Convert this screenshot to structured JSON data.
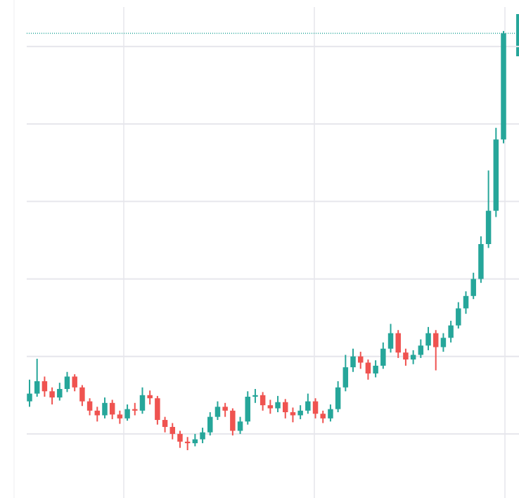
{
  "chart_data": {
    "type": "candlestick",
    "categories": [
      null,
      null,
      null,
      null,
      null,
      null,
      null,
      null,
      null,
      null,
      null,
      null,
      null,
      null,
      null,
      null,
      null,
      null,
      null,
      null,
      null,
      null,
      null,
      null,
      null,
      null,
      null,
      null,
      null,
      null,
      null,
      null,
      null,
      null,
      null,
      null,
      null,
      null,
      null,
      null,
      null,
      null,
      null,
      null,
      null,
      null,
      null,
      null,
      null,
      null,
      null,
      null,
      null,
      null,
      null,
      null,
      null,
      null,
      null,
      null,
      null,
      null,
      null,
      null
    ],
    "open": [
      1.42,
      1.52,
      1.68,
      1.55,
      1.47,
      1.58,
      1.74,
      1.6,
      1.42,
      1.3,
      1.24,
      1.4,
      1.25,
      1.2,
      1.32,
      1.3,
      1.5,
      1.46,
      1.18,
      1.09,
      1.0,
      0.9,
      0.88,
      0.93,
      1.02,
      1.22,
      1.35,
      1.3,
      1.04,
      1.16,
      1.48,
      1.5,
      1.37,
      1.33,
      1.41,
      1.28,
      1.24,
      1.3,
      1.42,
      1.26,
      1.2,
      1.32,
      1.6,
      1.86,
      2.0,
      1.92,
      1.78,
      1.88,
      2.1,
      2.3,
      2.05,
      1.96,
      2.02,
      2.14,
      2.3,
      2.12,
      2.24,
      2.4,
      2.62,
      2.78,
      3.0,
      3.45,
      3.88,
      4.8
    ],
    "high": [
      1.7,
      1.97,
      1.74,
      1.6,
      1.66,
      1.8,
      1.77,
      1.63,
      1.46,
      1.35,
      1.47,
      1.44,
      1.3,
      1.38,
      1.4,
      1.6,
      1.56,
      1.49,
      1.22,
      1.14,
      1.04,
      0.96,
      1.0,
      1.08,
      1.28,
      1.42,
      1.4,
      1.33,
      1.22,
      1.55,
      1.58,
      1.54,
      1.44,
      1.49,
      1.45,
      1.34,
      1.37,
      1.52,
      1.46,
      1.3,
      1.38,
      1.68,
      2.02,
      2.1,
      2.06,
      1.96,
      1.95,
      2.18,
      2.42,
      2.34,
      2.1,
      2.08,
      2.22,
      2.38,
      2.34,
      2.3,
      2.46,
      2.7,
      2.84,
      3.08,
      3.55,
      4.4,
      4.95,
      6.2
    ],
    "low": [
      1.35,
      1.48,
      1.48,
      1.38,
      1.43,
      1.54,
      1.55,
      1.36,
      1.24,
      1.16,
      1.2,
      1.19,
      1.13,
      1.17,
      1.24,
      1.26,
      1.38,
      1.12,
      1.02,
      0.93,
      0.82,
      0.79,
      0.84,
      0.88,
      0.98,
      1.18,
      1.22,
      0.98,
      1.0,
      1.12,
      1.4,
      1.3,
      1.26,
      1.28,
      1.2,
      1.15,
      1.19,
      1.26,
      1.2,
      1.14,
      1.16,
      1.28,
      1.55,
      1.8,
      1.84,
      1.7,
      1.73,
      1.84,
      2.05,
      1.98,
      1.88,
      1.9,
      1.98,
      2.08,
      1.82,
      2.06,
      2.18,
      2.36,
      2.55,
      2.74,
      2.95,
      3.4,
      3.8,
      4.75
    ],
    "close": [
      1.52,
      1.68,
      1.55,
      1.47,
      1.58,
      1.74,
      1.6,
      1.42,
      1.3,
      1.24,
      1.4,
      1.25,
      1.2,
      1.32,
      1.3,
      1.5,
      1.46,
      1.18,
      1.09,
      1.0,
      0.9,
      0.88,
      0.93,
      1.02,
      1.22,
      1.35,
      1.3,
      1.04,
      1.16,
      1.48,
      1.5,
      1.37,
      1.33,
      1.41,
      1.28,
      1.24,
      1.3,
      1.42,
      1.26,
      1.2,
      1.32,
      1.6,
      1.86,
      2.0,
      1.92,
      1.78,
      1.88,
      2.1,
      2.3,
      2.05,
      1.96,
      2.02,
      2.14,
      2.3,
      2.12,
      2.24,
      2.4,
      2.62,
      2.78,
      3.0,
      3.45,
      3.88,
      4.8,
      6.17
    ],
    "up_color": "#26a69a",
    "down_color": "#ef5350",
    "ylim": [
      0.2,
      6.6
    ],
    "yticks": [
      1,
      2,
      3,
      4,
      5,
      6
    ],
    "grid": true,
    "last_price_line": true
  }
}
